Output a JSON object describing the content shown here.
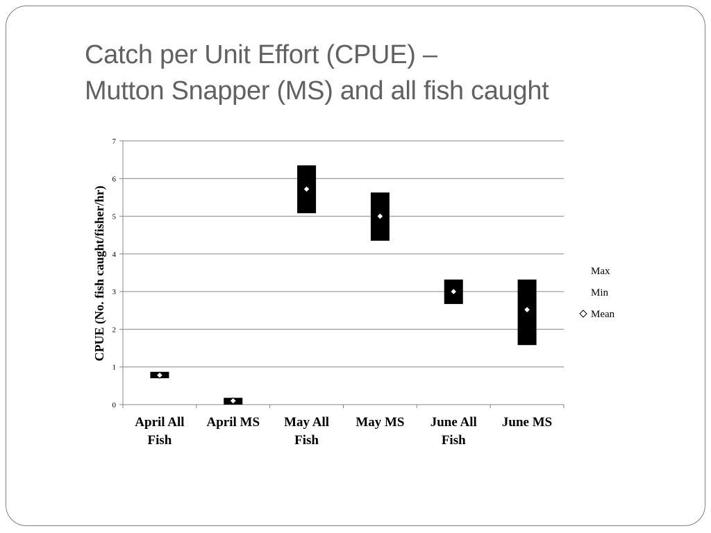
{
  "slide": {
    "title_line1": "Catch per Unit Effort (CPUE) –",
    "title_line2": "Mutton Snapper (MS) and all fish caught"
  },
  "chart_data": {
    "type": "high-low-mean",
    "title": "",
    "xlabel": "",
    "ylabel": "CPUE (No. fish caught/fisher/hr)",
    "ylim": [
      0,
      7
    ],
    "yticks": [
      0,
      1,
      2,
      3,
      4,
      5,
      6,
      7
    ],
    "grid": true,
    "legend_position": "right",
    "categories": [
      "April All Fish",
      "April MS",
      "May All Fish",
      "May MS",
      "June All Fish",
      "June MS"
    ],
    "category_labels": [
      [
        "April All",
        "Fish"
      ],
      [
        "April MS"
      ],
      [
        "May All",
        "Fish"
      ],
      [
        "May MS"
      ],
      [
        "June All",
        "Fish"
      ],
      [
        "June MS"
      ]
    ],
    "series": [
      {
        "name": "Max",
        "values": [
          0.87,
          0.18,
          6.35,
          5.63,
          3.32,
          3.32
        ]
      },
      {
        "name": "Min",
        "values": [
          0.7,
          0.0,
          5.08,
          4.35,
          2.67,
          1.58
        ]
      },
      {
        "name": "Mean",
        "values": [
          0.78,
          0.1,
          5.72,
          5.0,
          3.0,
          2.52
        ]
      }
    ],
    "colors": {
      "bar": "#000000",
      "marker_fill": "#ffffff",
      "grid": "#868686",
      "axis": "#868686"
    }
  }
}
